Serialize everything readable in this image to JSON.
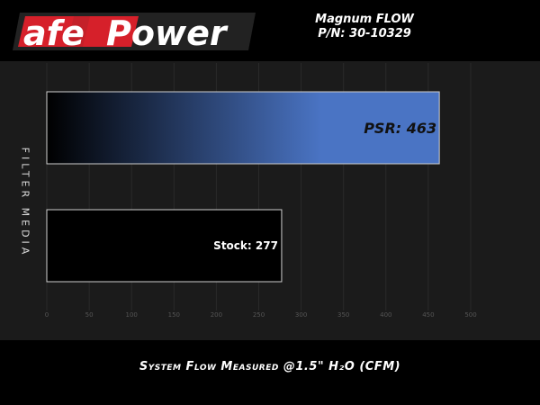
{
  "brand": {
    "logo_text": "afePower",
    "logo_colors": {
      "red": "#d6202a",
      "white": "#ffffff"
    }
  },
  "header": {
    "line1": "Magnum FLOW",
    "line2": "P/N: 30-10329"
  },
  "chart_data": {
    "type": "bar",
    "orientation": "horizontal",
    "categories": [
      "PSR",
      "Stock"
    ],
    "values": [
      463,
      277
    ],
    "data_labels": [
      "PSR: 463",
      "Stock: 277"
    ],
    "xlabel": "System Flow Measured @1.5\" H₂O (CFM)",
    "ylabel": "FILTER MEDIA",
    "xlim": [
      0,
      500
    ],
    "xticks": [
      0,
      50,
      100,
      150,
      200,
      250,
      300,
      350,
      400,
      450,
      500
    ],
    "grid": true,
    "colors": {
      "PSR_start": "#000000",
      "PSR_end": "#4a74c4",
      "Stock": "#000000",
      "border": "#cfcfcf"
    }
  }
}
